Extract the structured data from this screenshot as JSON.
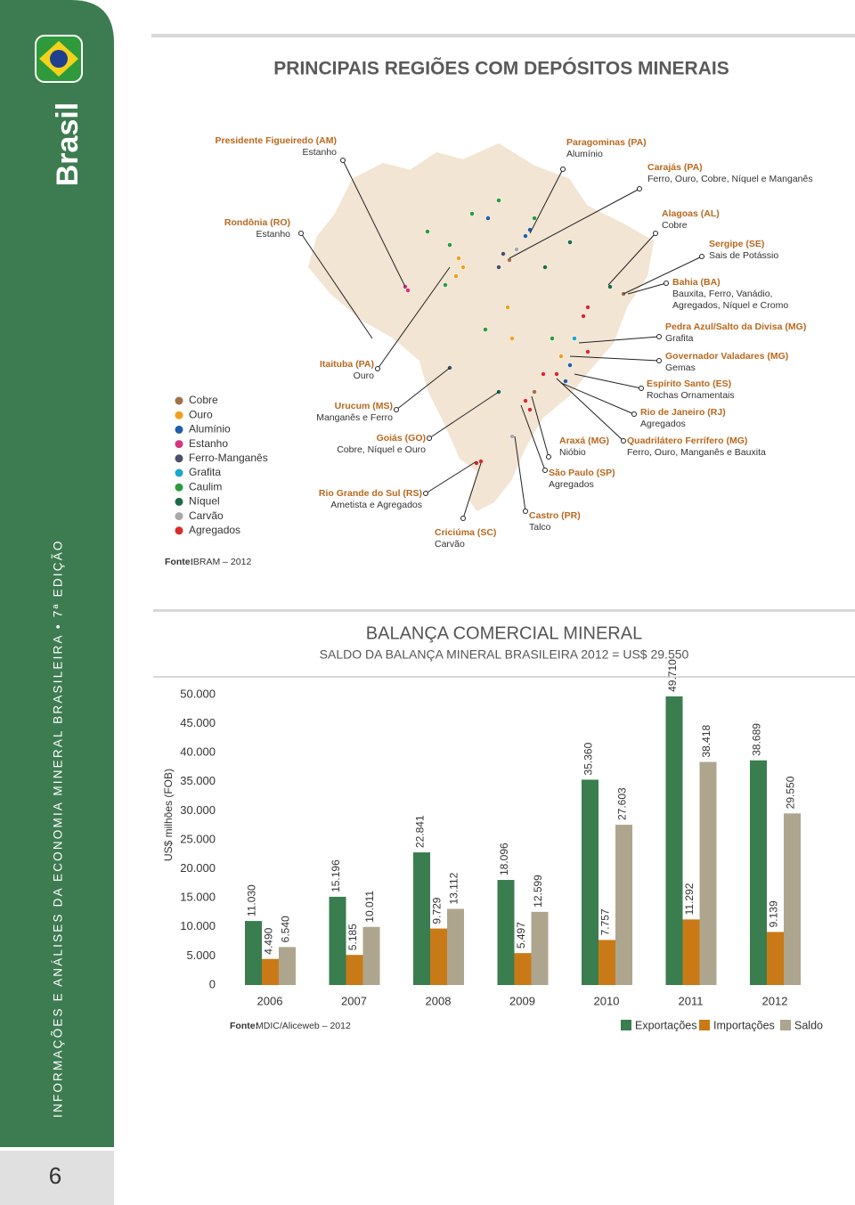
{
  "sidebar": {
    "brand": "Brasil",
    "series_title": "INFORMAÇÕES E ANÁLISES DA ECONOMIA MINERAL BRASILEIRA • 7ª EDIÇÃO",
    "page_number": "6"
  },
  "header": {
    "title": "PRINCIPAIS REGIÕES COM DEPÓSITOS MINERAIS"
  },
  "map": {
    "legend": [
      {
        "name": "Cobre",
        "color": "#a0724a"
      },
      {
        "name": "Ouro",
        "color": "#f0a020"
      },
      {
        "name": "Alumínio",
        "color": "#1f5fa8"
      },
      {
        "name": "Estanho",
        "color": "#d6357f"
      },
      {
        "name": "Ferro-Manganês",
        "color": "#4a5068"
      },
      {
        "name": "Grafita",
        "color": "#1aa7c9"
      },
      {
        "name": "Caulim",
        "color": "#2e9a3e"
      },
      {
        "name": "Níquel",
        "color": "#1d6b4a"
      },
      {
        "name": "Carvão",
        "color": "#a8a8a8"
      },
      {
        "name": "Agregados",
        "color": "#d92b2b"
      }
    ],
    "source_label": "Fonte:",
    "source": "IBRAM – 2012",
    "callouts": [
      {
        "name": "Presidente Figueiredo (AM)",
        "minerals": "Estanho"
      },
      {
        "name": "Rondônia (RO)",
        "minerals": "Estanho"
      },
      {
        "name": "Paragominas (PA)",
        "minerals": "Alumínio"
      },
      {
        "name": "Carajás (PA)",
        "minerals": "Ferro, Ouro, Cobre, Níquel e Manganês"
      },
      {
        "name": "Alagoas (AL)",
        "minerals": "Cobre"
      },
      {
        "name": "Sergipe (SE)",
        "minerals": "Sais de Potássio"
      },
      {
        "name": "Bahia (BA)",
        "minerals": [
          "Bauxita, Ferro, Vanádio,",
          "Agregados, Níquel e Cromo"
        ]
      },
      {
        "name": "Pedra Azul/Salto da Divisa (MG)",
        "minerals": "Grafita"
      },
      {
        "name": "Governador Valadares (MG)",
        "minerals": "Gemas"
      },
      {
        "name": "Espírito Santo (ES)",
        "minerals": "Rochas Ornamentais"
      },
      {
        "name": "Rio de Janeiro (RJ)",
        "minerals": "Agregados"
      },
      {
        "name": "Quadrilátero Ferrífero (MG)",
        "minerals": "Ferro, Ouro, Manganês e Bauxita"
      },
      {
        "name": "Araxá (MG)",
        "minerals": "Nióbio"
      },
      {
        "name": "São Paulo (SP)",
        "minerals": "Agregados"
      },
      {
        "name": "Castro (PR)",
        "minerals": "Talco"
      },
      {
        "name": "Criciúma (SC)",
        "minerals": "Carvão"
      },
      {
        "name": "Rio Grande do Sul (RS)",
        "minerals": "Ametista e Agregados"
      },
      {
        "name": "Goiás (GO)",
        "minerals": "Cobre, Níquel e Ouro"
      },
      {
        "name": "Urucum (MS)",
        "minerals": "Manganês e Ferro"
      },
      {
        "name": "Itaituba (PA)",
        "minerals": "Ouro"
      }
    ]
  },
  "chart_data": {
    "type": "bar",
    "title": "BALANÇA COMERCIAL MINERAL",
    "subtitle": "SALDO DA BALANÇA MINERAL BRASILEIRA 2012 = US$ 29.550",
    "y_label": "US$ milhões (FOB)",
    "source_label": "Fonte:",
    "source": "MDIC/Aliceweb – 2012",
    "categories": [
      "2006",
      "2007",
      "2008",
      "2009",
      "2010",
      "2011",
      "2012"
    ],
    "series": [
      {
        "name": "Exportações",
        "color": "#3a7d4f",
        "values": [
          11030,
          15196,
          22841,
          18096,
          35360,
          49710,
          38689
        ],
        "value_labels": [
          "11.030",
          "15.196",
          "22.841",
          "18.096",
          "35.360",
          "49.710",
          "38.689"
        ]
      },
      {
        "name": "Importações",
        "color": "#c97a17",
        "values": [
          4490,
          5185,
          9729,
          5497,
          7757,
          11292,
          9139
        ],
        "value_labels": [
          "4.490",
          "5.185",
          "9.729",
          "5.497",
          "7.757",
          "11.292",
          "9.139"
        ]
      },
      {
        "name": "Saldo",
        "color": "#aea58e",
        "values": [
          6540,
          10011,
          13112,
          12599,
          27603,
          38418,
          29550
        ],
        "value_labels": [
          "6.540",
          "10.011",
          "13.112",
          "12.599",
          "27.603",
          "38.418",
          "29.550"
        ]
      }
    ],
    "ylim": [
      0,
      50000
    ],
    "yticks": [
      0,
      {
        "value": 5000,
        "label": "5.000"
      },
      {
        "value": 10000,
        "label": "10.000"
      },
      {
        "value": 15000,
        "label": "15.000"
      },
      {
        "value": 20000,
        "label": "20.000"
      },
      {
        "value": 25000,
        "label": "25.000"
      },
      {
        "value": 30000,
        "label": "30.000"
      },
      {
        "value": 35000,
        "label": "35.000"
      },
      {
        "value": 40000,
        "label": "40.000"
      },
      {
        "value": 45000,
        "label": "45.000"
      },
      {
        "value": 50000,
        "label": "50.000"
      }
    ]
  }
}
